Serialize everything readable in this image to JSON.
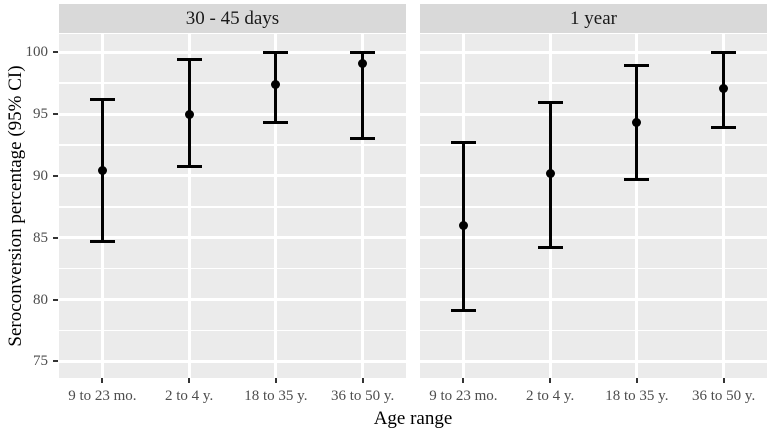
{
  "chart_data": {
    "type": "pointrange",
    "title": "",
    "xlabel": "Age range",
    "ylabel": "Seroconversion percentage (95% CI)",
    "ylim": [
      75,
      100
    ],
    "y_major_ticks": [
      75,
      80,
      85,
      90,
      95,
      100
    ],
    "y_tick_labels": [
      "75",
      "80",
      "85",
      "90",
      "95",
      "100"
    ],
    "y_minor_ticks": [
      77.5,
      82.5,
      87.5,
      92.5,
      97.5
    ],
    "grid": true,
    "legend": "none",
    "facet_titles": [
      "30 - 45 days",
      "1 year"
    ],
    "categories": [
      "9 to 23 mo.",
      "2 to 4 y.",
      "18 to 35 y.",
      "36 to 50 y."
    ],
    "panels": [
      {
        "title": "30 - 45 days",
        "points": [
          {
            "category": "9 to 23 mo.",
            "mid": 90.4,
            "lo": 84.7,
            "hi": 96.2
          },
          {
            "category": "2 to 4 y.",
            "mid": 95.0,
            "lo": 90.8,
            "hi": 99.4
          },
          {
            "category": "18 to 35 y.",
            "mid": 97.4,
            "lo": 94.3,
            "hi": 100
          },
          {
            "category": "36 to 50 y.",
            "mid": 99.1,
            "lo": 93.0,
            "hi": 100
          }
        ]
      },
      {
        "title": "1 year",
        "points": [
          {
            "category": "9 to 23 mo.",
            "mid": 86.0,
            "lo": 79.1,
            "hi": 92.7
          },
          {
            "category": "2 to 4 y.",
            "mid": 90.2,
            "lo": 84.2,
            "hi": 95.9
          },
          {
            "category": "18 to 35 y.",
            "mid": 94.3,
            "lo": 89.7,
            "hi": 98.9
          },
          {
            "category": "36 to 50 y.",
            "mid": 97.1,
            "lo": 93.9,
            "hi": 100
          }
        ]
      }
    ],
    "colors": {
      "strip_bg": "#d9d9d9",
      "panel_bg": "#ebebeb",
      "grid": "#ffffff",
      "point": "#000000",
      "axis_text": "#4d4d4d",
      "title_text": "#000000",
      "tick_mark": "#333333"
    }
  }
}
